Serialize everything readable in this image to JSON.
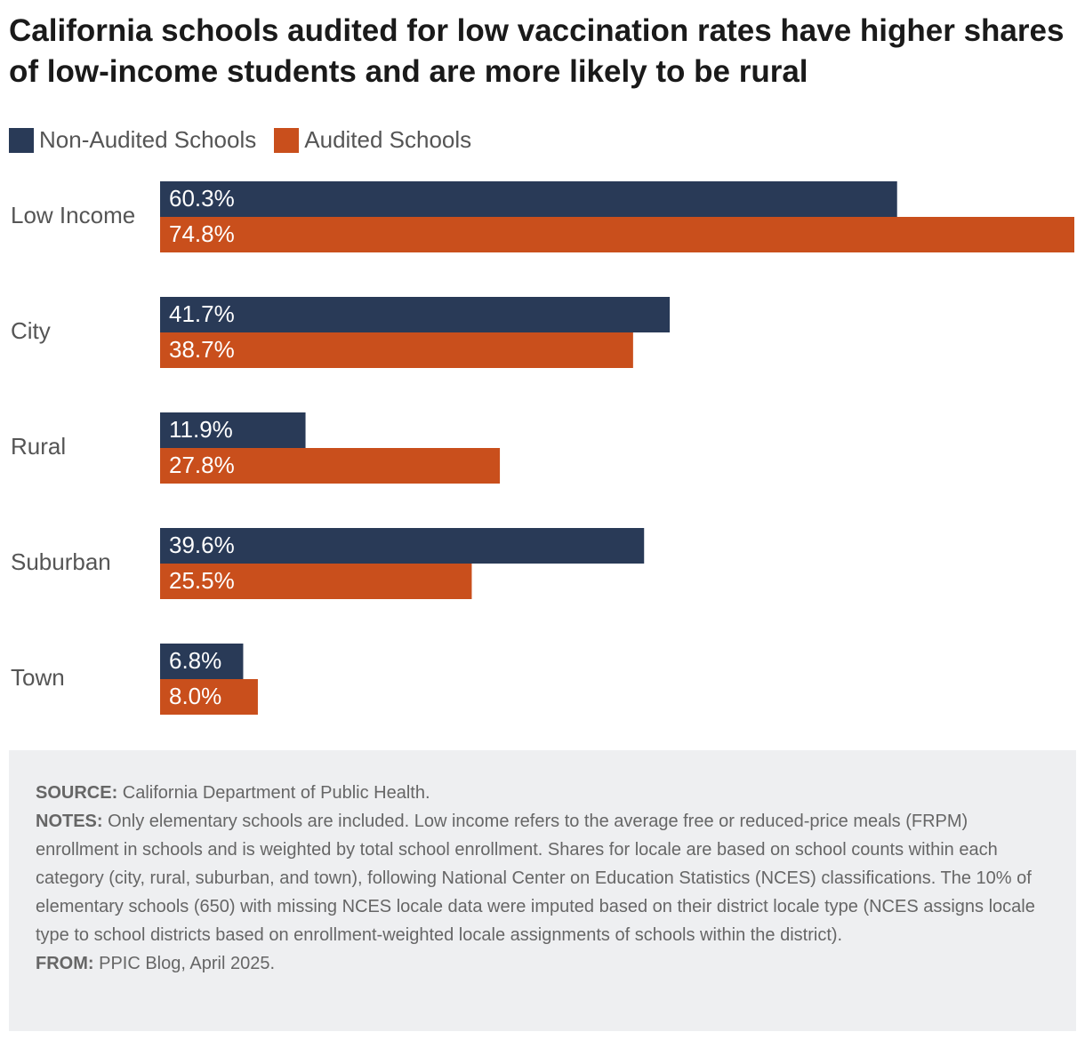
{
  "title": "California schools audited for low vaccination rates have higher shares of low-income students and are more likely to be rural",
  "colors": {
    "non_audited": "#293a57",
    "audited": "#c94f1c",
    "notes_bg": "#eeeff1"
  },
  "legend": [
    {
      "name": "Non-Audited Schools",
      "color": "#293a57"
    },
    {
      "name": "Audited Schools",
      "color": "#c94f1c"
    }
  ],
  "chart_data": {
    "type": "bar",
    "orientation": "horizontal",
    "title": "California schools audited for low vaccination rates have higher shares of low-income students and are more likely to be rural",
    "categories": [
      "Low Income",
      "City",
      "Rural",
      "Suburban",
      "Town"
    ],
    "series": [
      {
        "name": "Non-Audited Schools",
        "values": [
          60.3,
          41.7,
          11.9,
          39.6,
          6.8
        ],
        "labels": [
          "60.3%",
          "41.7%",
          "11.9%",
          "39.6%",
          "6.8%"
        ]
      },
      {
        "name": "Audited Schools",
        "values": [
          74.8,
          38.7,
          27.8,
          25.5,
          8.0
        ],
        "labels": [
          "74.8%",
          "38.7%",
          "27.8%",
          "25.5%",
          "8.0%"
        ]
      }
    ],
    "xlim": [
      0,
      74.8
    ],
    "grid": false,
    "legend_position": "top-left"
  },
  "notes": {
    "source_key": "SOURCE:",
    "source_text": " California Department of Public Health.",
    "notes_key": "NOTES:",
    "notes_text": " Only elementary schools are included. Low income refers to the average free or reduced-price meals (FRPM) enrollment in schools and is weighted by total school enrollment. Shares for locale are based on school counts within each category (city, rural, suburban, and town), following National Center on Education Statistics (NCES) classifications. The 10% of elementary schools (650) with missing NCES locale data were imputed based on their district locale type (NCES assigns locale type to school districts based on enrollment-weighted locale assignments of schools within the district).",
    "from_key": "FROM:",
    "from_text": " PPIC Blog, April 2025."
  }
}
